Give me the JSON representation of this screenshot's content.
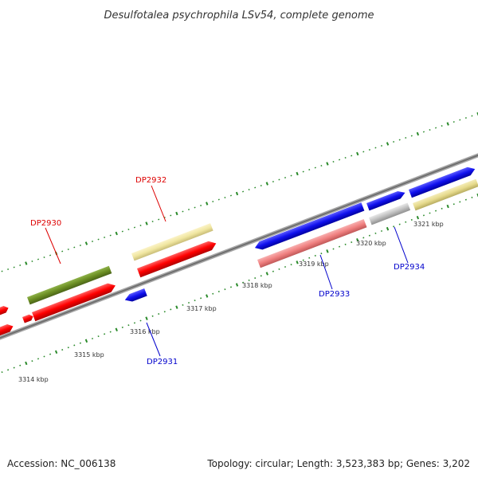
{
  "title": "Desulfotalea psychrophila LSv54, complete genome",
  "footer": {
    "accession": "Accession: NC_006138",
    "summary": "Topology: circular; Length: 3,523,383 bp; Genes: 3,202"
  },
  "ticks": [
    "3314 kbp",
    "3315 kbp",
    "3316 kbp",
    "3317 kbp",
    "3318 kbp",
    "3319 kbp",
    "3320 kbp",
    "3321 kbp"
  ],
  "gene_labels": [
    {
      "name": "DP2930",
      "color": "#dd0000"
    },
    {
      "name": "DP2932",
      "color": "#dd0000"
    },
    {
      "name": "DP2931",
      "color": "#0000cc"
    },
    {
      "name": "DP2933",
      "color": "#0000cc"
    },
    {
      "name": "DP2934",
      "color": "#0000cc"
    }
  ],
  "colors": {
    "backbone": "#808080",
    "dots": "#2a8a2a",
    "red": "#ff0000",
    "blue": "#1010ee",
    "yellow": "#f0e6a0",
    "olive": "#6b8e23",
    "salmon": "#f08080",
    "grey": "#c0c0c0",
    "khaki": "#e6da8c"
  }
}
